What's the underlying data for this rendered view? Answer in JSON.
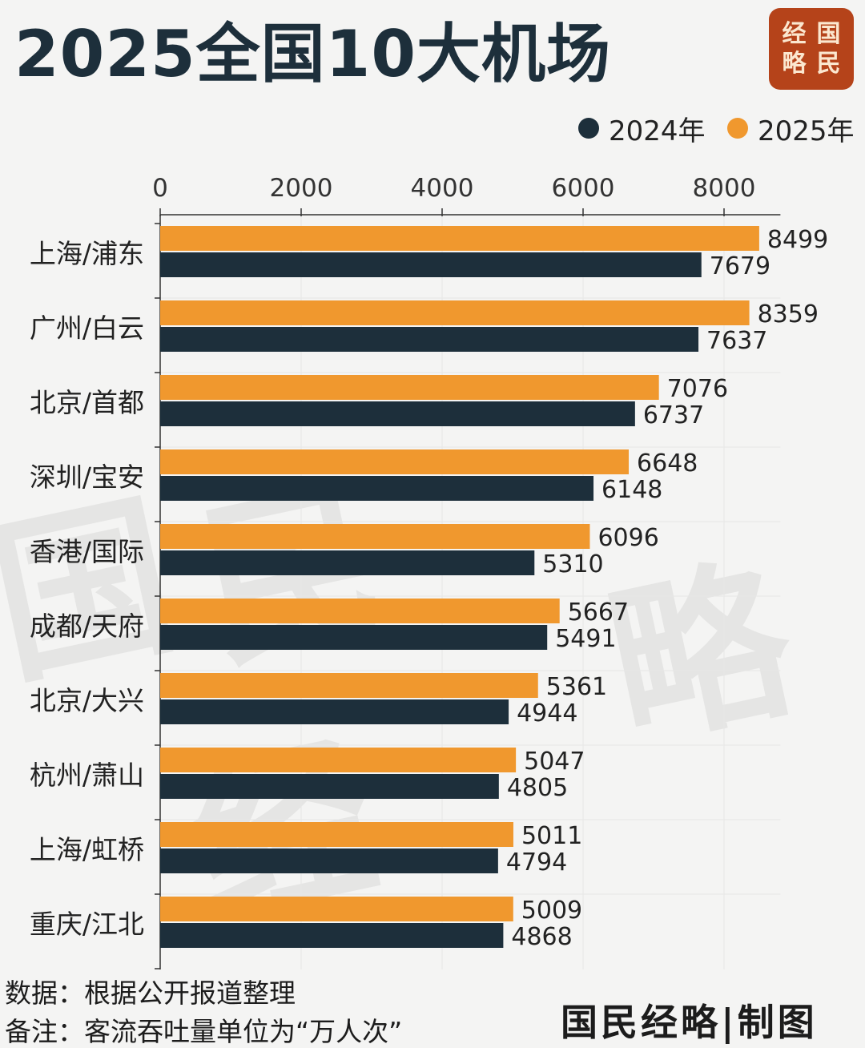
{
  "title": "2025全国10大机场",
  "seal": [
    "经",
    "国",
    "略",
    "民"
  ],
  "watermark_text": "国民经略",
  "chart_data": {
    "type": "bar",
    "orientation": "horizontal",
    "title": "2025全国10大机场",
    "categories": [
      "上海/浦东",
      "广州/白云",
      "北京/首都",
      "深圳/宝安",
      "香港/国际",
      "成都/天府",
      "北京/大兴",
      "杭州/萧山",
      "上海/虹桥",
      "重庆/江北"
    ],
    "series": [
      {
        "name": "2025年",
        "color": "#f0982e",
        "values": [
          8499,
          8359,
          7076,
          6648,
          6096,
          5667,
          5361,
          5047,
          5011,
          5009
        ]
      },
      {
        "name": "2024年",
        "color": "#1d2f3b",
        "values": [
          7679,
          7637,
          6737,
          6148,
          5310,
          5491,
          4944,
          4805,
          4794,
          4868
        ]
      }
    ],
    "xlim": [
      0,
      8800
    ],
    "xticks": [
      0,
      2000,
      4000,
      6000,
      8000
    ],
    "tick_labels": [
      "0",
      "2000",
      "4000",
      "6000",
      "8000"
    ],
    "axis_position": "top",
    "grid": true,
    "legend_position": "top-right",
    "data_labels": true
  },
  "legend": [
    {
      "label": "2024年",
      "color": "#1d2f3b"
    },
    {
      "label": "2025年",
      "color": "#f0982e"
    }
  ],
  "footer": {
    "source": "数据：根据公开报道整理",
    "note": "备注：客流吞吐量单位为“万人次”"
  },
  "credit": "国民经略|制图"
}
